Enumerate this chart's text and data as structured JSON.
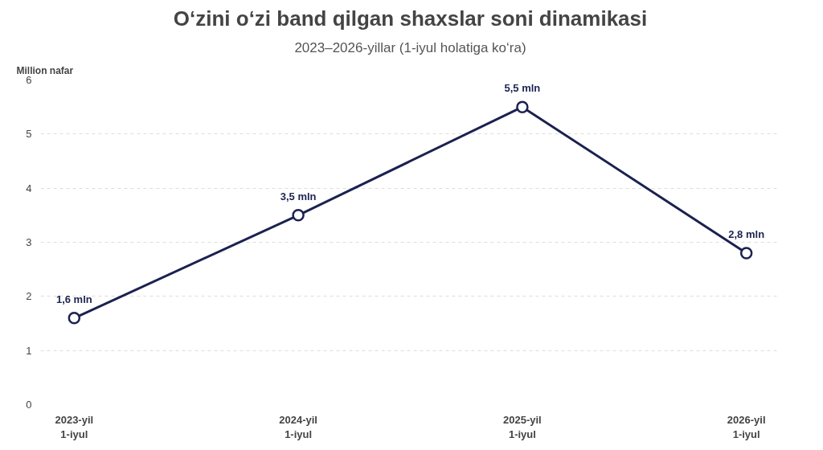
{
  "chart_data": {
    "type": "line",
    "title": "O‘zini o‘zi band qilgan shaxslar soni dinamikasi",
    "subtitle": "2023–2026-yillar (1-iyul holatiga ko‘ra)",
    "ylabel": "Million nafar",
    "categories": [
      "2023-yil\n1-iyul",
      "2024-yil\n1-iyul",
      "2025-yil\n1-iyul",
      "2026-yil\n1-iyul"
    ],
    "series": [
      {
        "color": "#1b2250",
        "values": [
          1.6,
          3.5,
          5.5,
          2.8
        ],
        "value_labels": [
          "1,6 mln",
          "3,5 mln",
          "5,5 mln",
          "2,8 mln"
        ]
      }
    ],
    "ylim": [
      0,
      6
    ],
    "yticks": [
      0,
      1,
      2,
      3,
      4,
      5,
      6
    ],
    "grid": "y",
    "marker": "circle",
    "line_style": "solid"
  }
}
